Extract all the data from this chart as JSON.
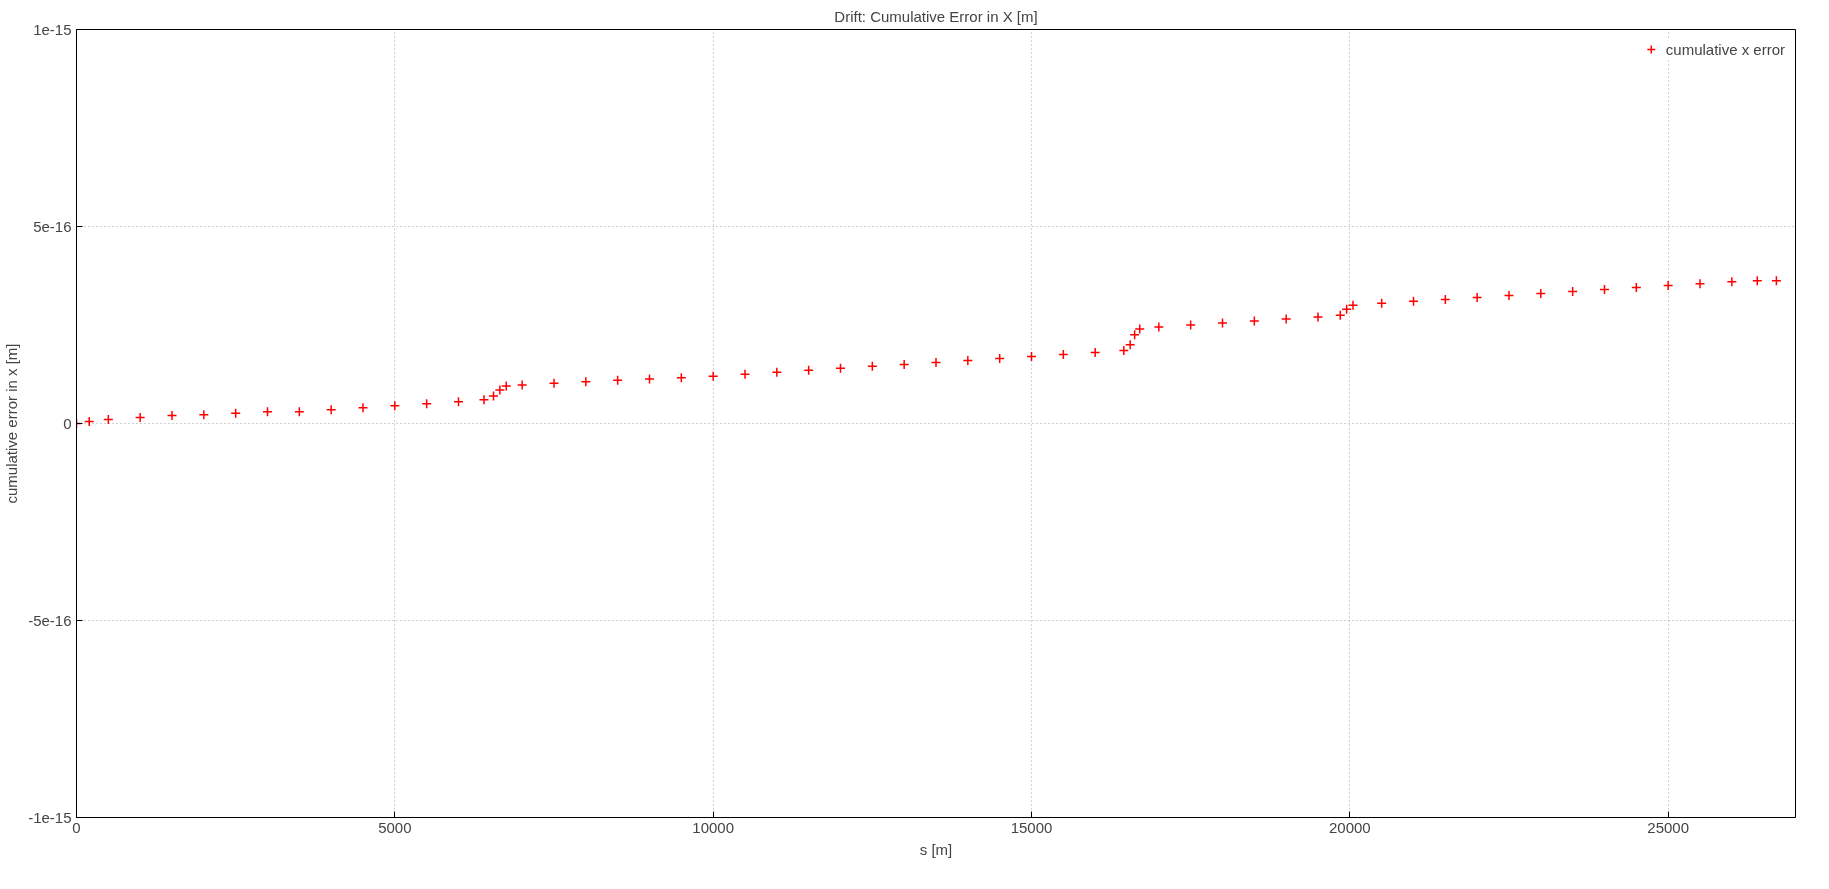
{
  "chart_data": {
    "type": "scatter",
    "title": "Drift: Cumulative Error in X [m]",
    "xlabel": "s [m]",
    "ylabel": "cumulative error in x [m]",
    "xlim": [
      0,
      27000
    ],
    "ylim": [
      -1e-15,
      1e-15
    ],
    "xticks": [
      0,
      5000,
      10000,
      15000,
      20000,
      25000
    ],
    "yticks": [
      -1e-15,
      -5e-16,
      0,
      5e-16,
      1e-15
    ],
    "grid": true,
    "legend": "top right",
    "marker": "cross",
    "series": [
      {
        "name": "cumulative x error",
        "color": "#ff0000",
        "x": [
          0,
          200,
          500,
          1000,
          1500,
          2000,
          2500,
          3000,
          3500,
          4000,
          4500,
          5000,
          5500,
          6000,
          6400,
          6550,
          6650,
          6750,
          7000,
          7500,
          8000,
          8500,
          9000,
          9500,
          10000,
          10500,
          11000,
          11500,
          12000,
          12500,
          13000,
          13500,
          14000,
          14500,
          15000,
          15500,
          16000,
          16450,
          16550,
          16620,
          16700,
          17000,
          17500,
          18000,
          18500,
          19000,
          19500,
          19850,
          19950,
          20050,
          20500,
          21000,
          21500,
          22000,
          22500,
          23000,
          23500,
          24000,
          24500,
          25000,
          25500,
          26000,
          26400,
          26700
        ],
        "values": [
          0,
          5e-18,
          1e-17,
          1.5e-17,
          2e-17,
          2.2e-17,
          2.6e-17,
          3e-17,
          3e-17,
          3.5e-17,
          4e-17,
          4.5e-17,
          5e-17,
          5.5e-17,
          6e-17,
          7e-17,
          8.5e-17,
          9.5e-17,
          9.8e-17,
          1.02e-16,
          1.06e-16,
          1.1e-16,
          1.13e-16,
          1.16e-16,
          1.2e-16,
          1.25e-16,
          1.3e-16,
          1.35e-16,
          1.4e-16,
          1.45e-16,
          1.5e-16,
          1.55e-16,
          1.6e-16,
          1.65e-16,
          1.7e-16,
          1.75e-16,
          1.8e-16,
          1.85e-16,
          2e-16,
          2.25e-16,
          2.4e-16,
          2.45e-16,
          2.5e-16,
          2.55e-16,
          2.6e-16,
          2.65e-16,
          2.7e-16,
          2.75e-16,
          2.9e-16,
          3e-16,
          3.05e-16,
          3.1e-16,
          3.15e-16,
          3.2e-16,
          3.25e-16,
          3.3e-16,
          3.35e-16,
          3.4e-16,
          3.45e-16,
          3.5e-16,
          3.55e-16,
          3.6e-16,
          3.62e-16,
          3.62e-16
        ]
      }
    ]
  }
}
